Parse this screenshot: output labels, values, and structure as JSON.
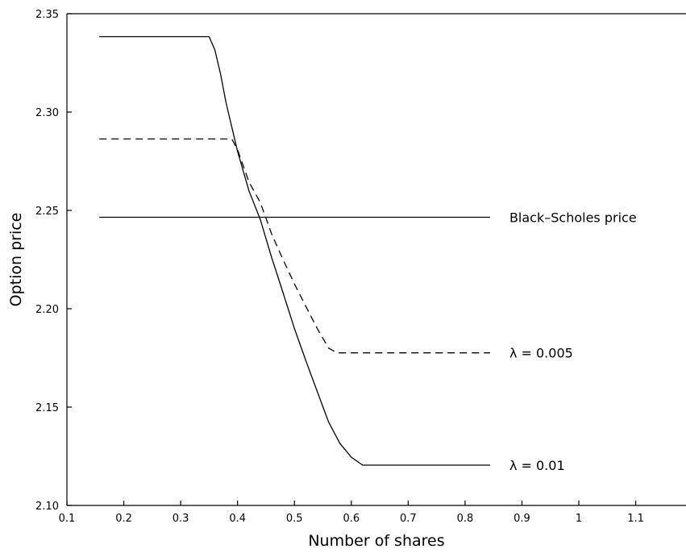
{
  "chart_data": {
    "type": "line",
    "xlabel": "Number of shares",
    "ylabel": "Option price",
    "xlim": [
      0.1,
      1.2
    ],
    "ylim": [
      2.1,
      2.35
    ],
    "x_ticks": [
      "0.1",
      "0.2",
      "0.3",
      "0.4",
      "0.5",
      "0.6",
      "0.7",
      "0.8",
      "0.9",
      "1",
      "1.1"
    ],
    "y_ticks": [
      "2.10",
      "2.15",
      "2.20",
      "2.25",
      "2.30",
      "2.35"
    ],
    "grid": false,
    "series": [
      {
        "name": "Black–Scholes price",
        "style": "solid",
        "label_color": "#000000",
        "points": [
          [
            0.157,
            2.2465
          ],
          [
            0.844,
            2.2465
          ]
        ]
      },
      {
        "name": "λ = 0.005",
        "style": "dashed",
        "points": [
          [
            0.157,
            2.2863
          ],
          [
            0.39,
            2.2863
          ],
          [
            0.4,
            2.2808
          ],
          [
            0.42,
            2.2645
          ],
          [
            0.44,
            2.254
          ],
          [
            0.46,
            2.238
          ],
          [
            0.48,
            2.225
          ],
          [
            0.5,
            2.2127
          ],
          [
            0.52,
            2.2012
          ],
          [
            0.54,
            2.19
          ],
          [
            0.56,
            2.18
          ],
          [
            0.575,
            2.1776
          ],
          [
            0.844,
            2.1776
          ]
        ]
      },
      {
        "name": "λ = 0.01",
        "style": "solid",
        "points": [
          [
            0.157,
            2.3383
          ],
          [
            0.35,
            2.3383
          ],
          [
            0.36,
            2.3317
          ],
          [
            0.37,
            2.3195
          ],
          [
            0.38,
            2.3044
          ],
          [
            0.4,
            2.28
          ],
          [
            0.42,
            2.26
          ],
          [
            0.44,
            2.2454
          ],
          [
            0.46,
            2.226
          ],
          [
            0.48,
            2.2082
          ],
          [
            0.5,
            2.19
          ],
          [
            0.52,
            2.1736
          ],
          [
            0.54,
            2.158
          ],
          [
            0.56,
            2.1424
          ],
          [
            0.58,
            2.1315
          ],
          [
            0.6,
            2.1245
          ],
          [
            0.62,
            2.1205
          ],
          [
            0.844,
            2.1205
          ]
        ]
      }
    ]
  }
}
